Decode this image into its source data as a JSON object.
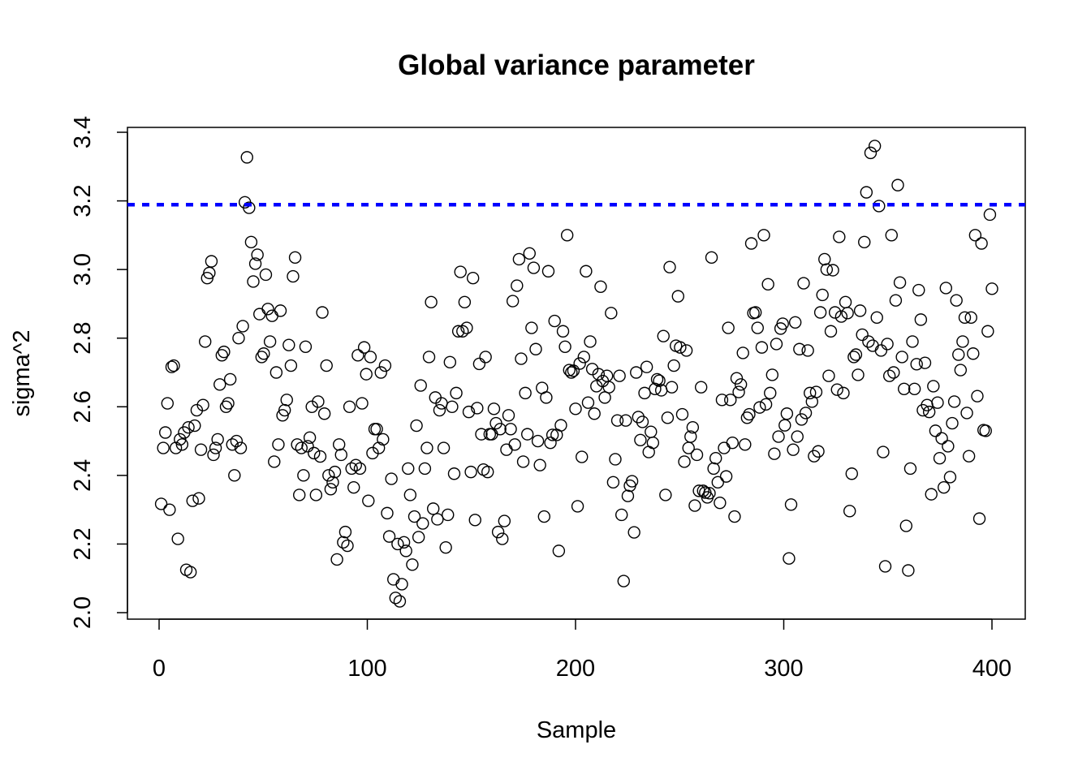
{
  "chart_data": {
    "type": "scatter",
    "title": "Global variance parameter",
    "xlabel": "Sample",
    "ylabel": "sigma^2",
    "xlim": [
      0,
      400
    ],
    "ylim": [
      2.0,
      3.4
    ],
    "x_ticks": [
      0,
      100,
      200,
      300,
      400
    ],
    "x_tick_labels": [
      "0",
      "100",
      "200",
      "300",
      "400"
    ],
    "y_ticks": [
      2.0,
      2.2,
      2.4,
      2.6,
      2.8,
      3.0,
      3.2,
      3.4
    ],
    "y_tick_labels": [
      "2.0",
      "2.2",
      "2.4",
      "2.6",
      "2.8",
      "3.0",
      "3.2",
      "3.4"
    ],
    "grid": false,
    "reference_line": {
      "y": 3.189,
      "style": "dashed",
      "color": "#0000ff"
    },
    "point_color": "#000000",
    "x_note": "x = sample index 1..n",
    "y": [
      2.317,
      2.48,
      2.525,
      2.61,
      2.3,
      2.716,
      2.72,
      2.48,
      2.215,
      2.505,
      2.49,
      2.525,
      2.125,
      2.54,
      2.118,
      2.326,
      2.545,
      2.59,
      2.333,
      2.475,
      2.605,
      2.79,
      2.975,
      2.99,
      3.024,
      2.46,
      2.48,
      2.505,
      2.665,
      2.75,
      2.76,
      2.6,
      2.61,
      2.68,
      2.49,
      2.4,
      2.5,
      2.8,
      2.48,
      2.835,
      3.196,
      3.327,
      3.18,
      3.08,
      2.965,
      3.017,
      3.043,
      2.87,
      2.745,
      2.755,
      2.985,
      2.885,
      2.79,
      2.865,
      2.44,
      2.7,
      2.49,
      2.88,
      2.575,
      2.59,
      2.62,
      2.78,
      2.72,
      2.98,
      3.035,
      2.49,
      2.343,
      2.48,
      2.4,
      2.775,
      2.485,
      2.51,
      2.6,
      2.465,
      2.343,
      2.615,
      2.455,
      2.875,
      2.58,
      2.72,
      2.4,
      2.36,
      2.38,
      2.41,
      2.155,
      2.49,
      2.46,
      2.205,
      2.235,
      2.195,
      2.6,
      2.42,
      2.365,
      2.43,
      2.75,
      2.42,
      2.61,
      2.773,
      2.695,
      2.326,
      2.745,
      2.465,
      2.535,
      2.535,
      2.48,
      2.7,
      2.505,
      2.72,
      2.29,
      2.222,
      2.39,
      2.097,
      2.043,
      2.2,
      2.033,
      2.083,
      2.205,
      2.18,
      2.42,
      2.343,
      2.14,
      2.28,
      2.545,
      2.22,
      2.662,
      2.26,
      2.42,
      2.48,
      2.745,
      2.905,
      2.303,
      2.627,
      2.272,
      2.59,
      2.61,
      2.48,
      2.19,
      2.285,
      2.73,
      2.6,
      2.405,
      2.64,
      2.82,
      2.993,
      2.82,
      2.905,
      2.83,
      2.585,
      2.41,
      2.975,
      2.27,
      2.596,
      2.725,
      2.52,
      2.417,
      2.745,
      2.41,
      2.52,
      2.52,
      2.594,
      2.552,
      2.235,
      2.535,
      2.215,
      2.267,
      2.475,
      2.575,
      2.535,
      2.908,
      2.49,
      2.953,
      3.03,
      2.74,
      2.44,
      2.64,
      2.52,
      3.047,
      2.83,
      3.005,
      2.768,
      2.5,
      2.43,
      2.655,
      2.28,
      2.627,
      2.995,
      2.495,
      2.518,
      2.85,
      2.518,
      2.18,
      2.546,
      2.82,
      2.775,
      3.1,
      2.707,
      2.7,
      2.705,
      2.594,
      2.31,
      2.726,
      2.454,
      2.745,
      2.995,
      2.612,
      2.79,
      2.71,
      2.58,
      2.66,
      2.695,
      2.95,
      2.675,
      2.627,
      2.69,
      2.657,
      2.873,
      2.38,
      2.447,
      2.56,
      2.69,
      2.285,
      2.092,
      2.56,
      2.34,
      2.37,
      2.383,
      2.234,
      2.7,
      2.57,
      2.503,
      2.556,
      2.64,
      2.716,
      2.468,
      2.527,
      2.495,
      2.652,
      2.68,
      2.676,
      2.648,
      2.806,
      2.343,
      2.568,
      3.007,
      2.657,
      2.72,
      2.778,
      2.922,
      2.773,
      2.578,
      2.44,
      2.764,
      2.48,
      2.513,
      2.54,
      2.312,
      2.46,
      2.355,
      2.657,
      2.355,
      2.35,
      2.336,
      2.348,
      3.035,
      2.42,
      2.45,
      2.38,
      2.32,
      2.62,
      2.48,
      2.397,
      2.83,
      2.62,
      2.495,
      2.28,
      2.683,
      2.643,
      2.665,
      2.757,
      2.49,
      2.568,
      2.578,
      3.076,
      2.873,
      2.875,
      2.83,
      2.598,
      2.773,
      3.1,
      2.607,
      2.957,
      2.64,
      2.693,
      2.463,
      2.783,
      2.513,
      2.828,
      2.842,
      2.546,
      2.58,
      2.158,
      2.315,
      2.475,
      2.846,
      2.513,
      2.768,
      2.563,
      2.96,
      2.582,
      2.764,
      2.64,
      2.615,
      2.456,
      2.643,
      2.47,
      2.875,
      2.926,
      3.03,
      3.0,
      2.69,
      2.82,
      2.998,
      2.875,
      2.65,
      3.095,
      2.863,
      2.64,
      2.905,
      2.873,
      2.296,
      2.405,
      2.745,
      2.752,
      2.693,
      2.88,
      2.81,
      3.08,
      3.225,
      2.79,
      3.34,
      2.778,
      3.36,
      2.86,
      3.185,
      2.764,
      2.468,
      2.135,
      2.783,
      2.69,
      3.1,
      2.7,
      2.91,
      3.246,
      2.962,
      2.745,
      2.652,
      2.253,
      2.123,
      2.42,
      2.79,
      2.652,
      2.724,
      2.94,
      2.854,
      2.59,
      2.728,
      2.605,
      2.585,
      2.345,
      2.66,
      2.53,
      2.612,
      2.45,
      2.508,
      2.365,
      2.946,
      2.485,
      2.395,
      2.552,
      2.615,
      2.91,
      2.752,
      2.707,
      2.79,
      2.86,
      2.582,
      2.456,
      2.86,
      2.755,
      3.1,
      2.631,
      2.274,
      3.076,
      2.532,
      2.53,
      2.82,
      3.16,
      2.944
    ]
  }
}
